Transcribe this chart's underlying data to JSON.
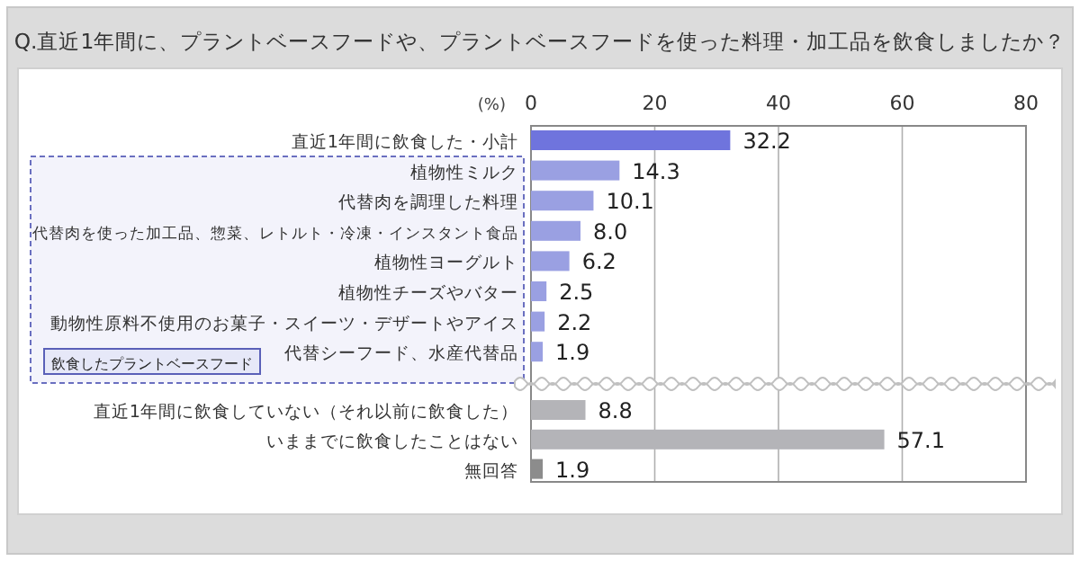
{
  "chart_data": {
    "type": "bar",
    "orientation": "horizontal",
    "title": "Q.直近1年間に、プラントベースフードや、プラントベースフードを使った料理・加工品を飲食しましたか？",
    "categories": [
      "直近1年間に飲食した・小計",
      "植物性ミルク",
      "代替肉を調理した料理",
      "代替肉を使った加工品、惣菜、レトルト・冷凍・インスタント食品",
      "植物性ヨーグルト",
      "植物性チーズやバター",
      "動物性原料不使用のお菓子・スイーツ・デザートやアイス",
      "代替シーフード、水産代替品",
      "直近1年間に飲食していない（それ以前に飲食した）",
      "いままでに飲食したことはない",
      "無回答"
    ],
    "values": [
      32.2,
      14.3,
      10.1,
      8.0,
      6.2,
      2.5,
      2.2,
      1.9,
      8.8,
      57.1,
      1.9
    ],
    "value_labels": [
      "32.2",
      "14.3",
      "10.1",
      "8.0",
      "6.2",
      "2.5",
      "2.2",
      "1.9",
      "8.8",
      "57.1",
      "1.9"
    ],
    "colors": [
      "#6f74dd",
      "#9aa0e2",
      "#9aa0e2",
      "#9aa0e2",
      "#9aa0e2",
      "#9aa0e2",
      "#9aa0e2",
      "#9aa0e2",
      "#b4b4b8",
      "#b4b4b8",
      "#8c8c8c"
    ],
    "xlim": [
      0,
      80
    ],
    "xticks": [
      0,
      20,
      40,
      60,
      80
    ],
    "grid": "x",
    "annotations": [
      "(%)",
      "飲食したプラントベースフード"
    ]
  }
}
